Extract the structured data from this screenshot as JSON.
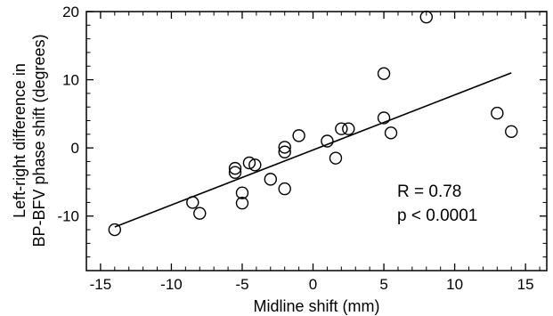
{
  "chart_data": {
    "type": "scatter",
    "title": "",
    "xlabel": "Midline shift (mm)",
    "ylabel_lines": [
      "Left-right difference in",
      "BP-BFV phase shift (degrees)"
    ],
    "xlim": [
      -16,
      16.5
    ],
    "ylim": [
      -18,
      20
    ],
    "xticks": [
      -15,
      -10,
      -5,
      0,
      5,
      10,
      15
    ],
    "yticks": [
      -10,
      0,
      10,
      20
    ],
    "xtick_labels": [
      "-15",
      "-10",
      "-5",
      "0",
      "5",
      "10",
      "15"
    ],
    "ytick_labels": [
      "-10",
      "0",
      "10",
      "20"
    ],
    "grid": false,
    "points": [
      {
        "x": -14,
        "y": -12
      },
      {
        "x": -8.5,
        "y": -8
      },
      {
        "x": -8,
        "y": -9.6
      },
      {
        "x": -5.5,
        "y": -3
      },
      {
        "x": -5.5,
        "y": -3.6
      },
      {
        "x": -5,
        "y": -6.6
      },
      {
        "x": -5,
        "y": -8.1
      },
      {
        "x": -4.5,
        "y": -2.2
      },
      {
        "x": -4.1,
        "y": -2.5
      },
      {
        "x": -3,
        "y": -4.6
      },
      {
        "x": -2,
        "y": -6
      },
      {
        "x": -2,
        "y": -0.6
      },
      {
        "x": -2,
        "y": 0.1
      },
      {
        "x": -1,
        "y": 1.8
      },
      {
        "x": 1,
        "y": 1
      },
      {
        "x": 1.6,
        "y": -1.5
      },
      {
        "x": 2,
        "y": 2.8
      },
      {
        "x": 2.5,
        "y": 2.8
      },
      {
        "x": 5,
        "y": 10.9
      },
      {
        "x": 5,
        "y": 4.4
      },
      {
        "x": 5.5,
        "y": 2.2
      },
      {
        "x": 8,
        "y": 19.2
      },
      {
        "x": 13,
        "y": 5.1
      },
      {
        "x": 14,
        "y": 2.4
      }
    ],
    "regression_line": {
      "x": [
        -14,
        14
      ],
      "y": [
        -11.6,
        11
      ]
    },
    "annotations": [
      "R = 0.78",
      "p < 0.0001"
    ]
  }
}
